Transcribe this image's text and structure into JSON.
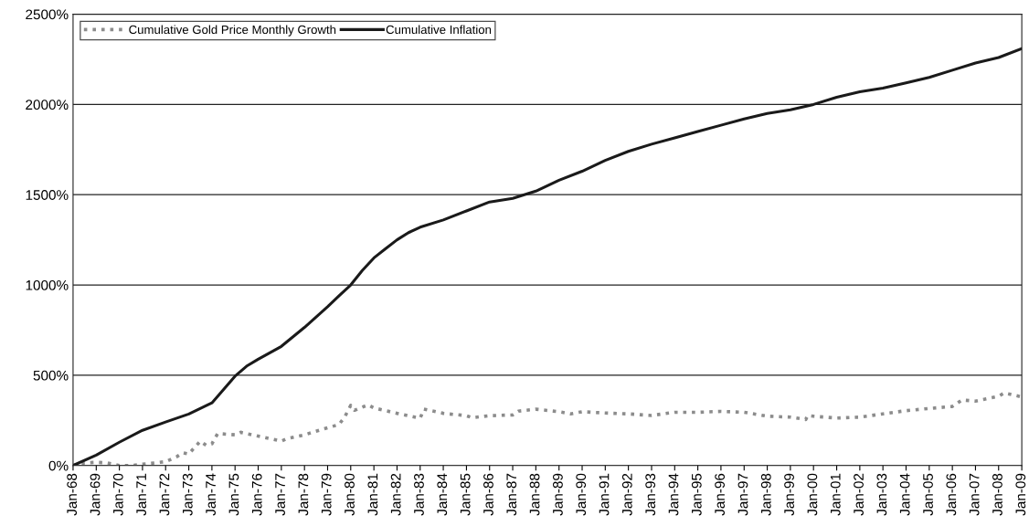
{
  "chart_data": {
    "type": "line",
    "series": [
      {
        "name": "Cumulative Gold Price Monthly Growth",
        "color": "#8c8c8c",
        "line_style": "dotted",
        "x": [
          "1968-01",
          "1968-07",
          "1969-01",
          "1969-07",
          "1970-01",
          "1970-07",
          "1971-01",
          "1971-07",
          "1972-01",
          "1972-07",
          "1972-10",
          "1973-01",
          "1973-07",
          "1973-10",
          "1974-01",
          "1974-04",
          "1975-01",
          "1975-04",
          "1976-01",
          "1977-01",
          "1977-04",
          "1978-01",
          "1979-01",
          "1979-07",
          "1979-10",
          "1980-01",
          "1980-03",
          "1980-10",
          "1981-01",
          "1982-01",
          "1983-01",
          "1983-03",
          "1984-01",
          "1985-01",
          "1985-04",
          "1986-01",
          "1987-01",
          "1987-04",
          "1988-01",
          "1989-01",
          "1989-07",
          "1990-01",
          "1991-01",
          "1992-01",
          "1993-01",
          "1994-01",
          "1995-01",
          "1996-01",
          "1997-01",
          "1998-01",
          "1999-01",
          "1999-09",
          "1999-10",
          "2000-01",
          "2001-01",
          "2002-01",
          "2003-01",
          "2004-01",
          "2005-01",
          "2006-01",
          "2006-06",
          "2007-01",
          "2008-01",
          "2008-04",
          "2009-01"
        ],
        "values": [
          0,
          14,
          18,
          14,
          0,
          0,
          7,
          14,
          21,
          50,
          71,
          64,
          135,
          112,
          120,
          177,
          170,
          184,
          163,
          135,
          149,
          170,
          209,
          227,
          271,
          333,
          306,
          336,
          319,
          289,
          262,
          312,
          289,
          276,
          265,
          276,
          280,
          301,
          312,
          298,
          286,
          298,
          291,
          286,
          277,
          295,
          295,
          300,
          295,
          273,
          268,
          255,
          277,
          273,
          263,
          268,
          286,
          304,
          316,
          327,
          363,
          357,
          384,
          402,
          380
        ]
      },
      {
        "name": "Cumulative Inflation",
        "color": "#1a1a1a",
        "line_style": "solid",
        "x": [
          "1968-01",
          "1969-01",
          "1970-01",
          "1971-01",
          "1972-01",
          "1973-01",
          "1974-01",
          "1974-07",
          "1975-01",
          "1975-07",
          "1976-01",
          "1977-01",
          "1978-01",
          "1979-01",
          "1979-07",
          "1980-01",
          "1980-07",
          "1981-01",
          "1981-07",
          "1982-01",
          "1982-07",
          "1983-01",
          "1984-01",
          "1985-01",
          "1986-01",
          "1987-01",
          "1988-01",
          "1989-01",
          "1990-01",
          "1991-01",
          "1992-01",
          "1993-01",
          "1994-01",
          "1995-01",
          "1996-01",
          "1997-01",
          "1998-01",
          "1999-01",
          "2000-01",
          "2001-01",
          "2002-01",
          "2003-01",
          "2004-01",
          "2005-01",
          "2006-01",
          "2007-01",
          "2008-01",
          "2009-01"
        ],
        "values": [
          0,
          58,
          129,
          195,
          241,
          285,
          347,
          420,
          495,
          550,
          589,
          660,
          765,
          880,
          940,
          1000,
          1080,
          1150,
          1200,
          1250,
          1290,
          1320,
          1360,
          1410,
          1460,
          1480,
          1520,
          1580,
          1630,
          1690,
          1740,
          1780,
          1815,
          1850,
          1885,
          1920,
          1950,
          1970,
          2000,
          2040,
          2070,
          2090,
          2120,
          2150,
          2190,
          2230,
          2260,
          2310
        ]
      }
    ],
    "xlim": [
      "1968-01",
      "2009-01"
    ],
    "xticks": [
      {
        "value": "1968-01",
        "label": "Jan-68"
      },
      {
        "value": "1969-01",
        "label": "Jan-69"
      },
      {
        "value": "1970-01",
        "label": "Jan-70"
      },
      {
        "value": "1971-01",
        "label": "Jan-71"
      },
      {
        "value": "1972-01",
        "label": "Jan-72"
      },
      {
        "value": "1973-01",
        "label": "Jan-73"
      },
      {
        "value": "1974-01",
        "label": "Jan-74"
      },
      {
        "value": "1975-01",
        "label": "Jan-75"
      },
      {
        "value": "1976-01",
        "label": "Jan-76"
      },
      {
        "value": "1977-01",
        "label": "Jan-77"
      },
      {
        "value": "1978-01",
        "label": "Jan-78"
      },
      {
        "value": "1979-01",
        "label": "Jan-79"
      },
      {
        "value": "1980-01",
        "label": "Jan-80"
      },
      {
        "value": "1981-01",
        "label": "Jan-81"
      },
      {
        "value": "1982-01",
        "label": "Jan-82"
      },
      {
        "value": "1983-01",
        "label": "Jan-83"
      },
      {
        "value": "1984-01",
        "label": "Jan-84"
      },
      {
        "value": "1985-01",
        "label": "Jan-85"
      },
      {
        "value": "1986-01",
        "label": "Jan-86"
      },
      {
        "value": "1987-01",
        "label": "Jan-87"
      },
      {
        "value": "1988-01",
        "label": "Jan-88"
      },
      {
        "value": "1989-01",
        "label": "Jan-89"
      },
      {
        "value": "1990-01",
        "label": "Jan-90"
      },
      {
        "value": "1991-01",
        "label": "Jan-91"
      },
      {
        "value": "1992-01",
        "label": "Jan-92"
      },
      {
        "value": "1993-01",
        "label": "Jan-93"
      },
      {
        "value": "1994-01",
        "label": "Jan-94"
      },
      {
        "value": "1995-01",
        "label": "Jan-95"
      },
      {
        "value": "1996-01",
        "label": "Jan-96"
      },
      {
        "value": "1997-01",
        "label": "Jan-97"
      },
      {
        "value": "1998-01",
        "label": "Jan-98"
      },
      {
        "value": "1999-01",
        "label": "Jan-99"
      },
      {
        "value": "2000-01",
        "label": "Jan-00"
      },
      {
        "value": "2001-01",
        "label": "Jan-01"
      },
      {
        "value": "2002-01",
        "label": "Jan-02"
      },
      {
        "value": "2003-01",
        "label": "Jan-03"
      },
      {
        "value": "2004-01",
        "label": "Jan-04"
      },
      {
        "value": "2005-01",
        "label": "Jan-05"
      },
      {
        "value": "2006-01",
        "label": "Jan-06"
      },
      {
        "value": "2007-01",
        "label": "Jan-07"
      },
      {
        "value": "2008-01",
        "label": "Jan-08"
      },
      {
        "value": "2009-01",
        "label": "Jan-09"
      }
    ],
    "ylim": [
      0,
      2500
    ],
    "yticks": [
      {
        "value": 0,
        "label": "0%"
      },
      {
        "value": 500,
        "label": "500%"
      },
      {
        "value": 1000,
        "label": "1000%"
      },
      {
        "value": 1500,
        "label": "1500%"
      },
      {
        "value": 2000,
        "label": "2000%"
      },
      {
        "value": 2500,
        "label": "2500%"
      }
    ],
    "grid": "y",
    "legend": "top left"
  }
}
